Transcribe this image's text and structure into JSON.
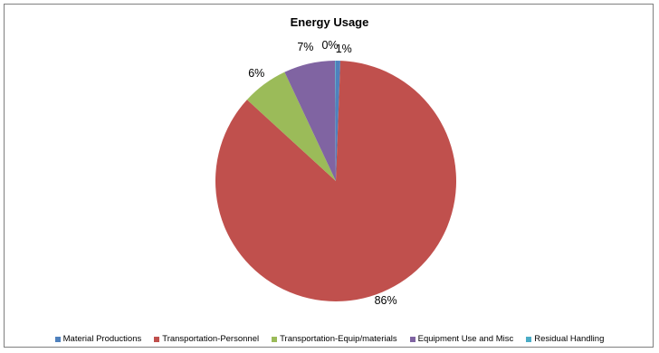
{
  "chart_data": {
    "type": "pie",
    "title": "Energy Usage",
    "legend_position": "bottom",
    "slices": [
      {
        "name": "Material Productions",
        "value": 0.6,
        "label": "1%",
        "color": "#4f81bd"
      },
      {
        "name": "Transportation-Personnel",
        "value": 86.2,
        "label": "86%",
        "color": "#c0504d"
      },
      {
        "name": "Transportation-Equip/materials",
        "value": 6.2,
        "label": "6%",
        "color": "#9bbb59"
      },
      {
        "name": "Equipment Use and Misc",
        "value": 6.9,
        "label": "7%",
        "color": "#8064a2"
      },
      {
        "name": "Residual Handling",
        "value": 0.1,
        "label": "0%",
        "color": "#4bacc6"
      }
    ]
  }
}
